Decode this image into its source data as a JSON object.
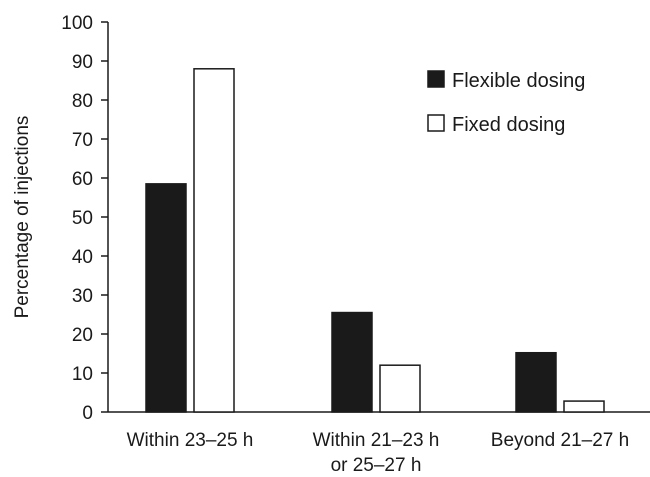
{
  "chart_data": {
    "type": "bar",
    "title": "",
    "xlabel": "",
    "ylabel": "Percentage of injections",
    "ylim": [
      0,
      100
    ],
    "yticks": [
      0,
      10,
      20,
      30,
      40,
      50,
      60,
      70,
      80,
      90,
      100
    ],
    "categories": [
      [
        "Within 23–25 h"
      ],
      [
        "Within 21–23 h",
        "or 25–27 h"
      ],
      [
        "Beyond 21–27 h"
      ]
    ],
    "series": [
      {
        "name": "Flexible dosing",
        "values": [
          58.5,
          25.5,
          15.2
        ],
        "color": "#1a1a1a"
      },
      {
        "name": "Fixed dosing",
        "values": [
          88,
          12,
          2.8
        ],
        "color": "#ffffff"
      }
    ],
    "grid": false,
    "legend_position": "top-right"
  }
}
